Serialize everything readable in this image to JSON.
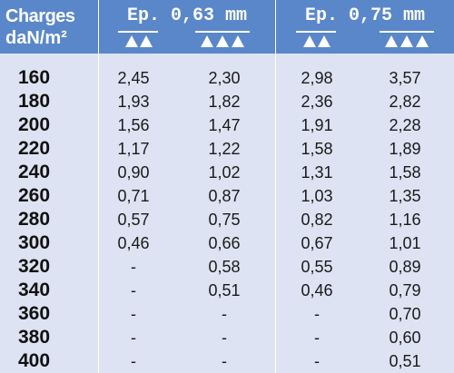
{
  "header": {
    "charges_label": "Charges",
    "unit_label": "daN/m²",
    "group1_label": "Ep. 0,63 mm",
    "group2_label": "Ep. 0,75 mm",
    "support_icons": [
      "two-triangles-icon",
      "three-triangles-icon",
      "two-triangles-icon",
      "three-triangles-icon"
    ]
  },
  "rows": [
    {
      "charge": "160",
      "v": [
        "2,45",
        "2,30",
        "2,98",
        "3,57"
      ]
    },
    {
      "charge": "180",
      "v": [
        "1,93",
        "1,82",
        "2,36",
        "2,82"
      ]
    },
    {
      "charge": "200",
      "v": [
        "1,56",
        "1,47",
        "1,91",
        "2,28"
      ]
    },
    {
      "charge": "220",
      "v": [
        "1,17",
        "1,22",
        "1,58",
        "1,89"
      ]
    },
    {
      "charge": "240",
      "v": [
        "0,90",
        "1,02",
        "1,31",
        "1,58"
      ]
    },
    {
      "charge": "260",
      "v": [
        "0,71",
        "0,87",
        "1,03",
        "1,35"
      ]
    },
    {
      "charge": "280",
      "v": [
        "0,57",
        "0,75",
        "0,82",
        "1,16"
      ]
    },
    {
      "charge": "300",
      "v": [
        "0,46",
        "0,66",
        "0,67",
        "1,01"
      ]
    },
    {
      "charge": "320",
      "v": [
        "-",
        "0,58",
        "0,55",
        "0,89"
      ]
    },
    {
      "charge": "340",
      "v": [
        "-",
        "0,51",
        "0,46",
        "0,79"
      ]
    },
    {
      "charge": "360",
      "v": [
        "-",
        "-",
        "-",
        "0,70"
      ]
    },
    {
      "charge": "380",
      "v": [
        "-",
        "-",
        "-",
        "0,60"
      ]
    },
    {
      "charge": "400",
      "v": [
        "-",
        "-",
        "-",
        "0,51"
      ]
    }
  ],
  "colors": {
    "header_bg": "#5a87c9",
    "body_bg": "#dde3f2",
    "divider": "#ffffff"
  }
}
